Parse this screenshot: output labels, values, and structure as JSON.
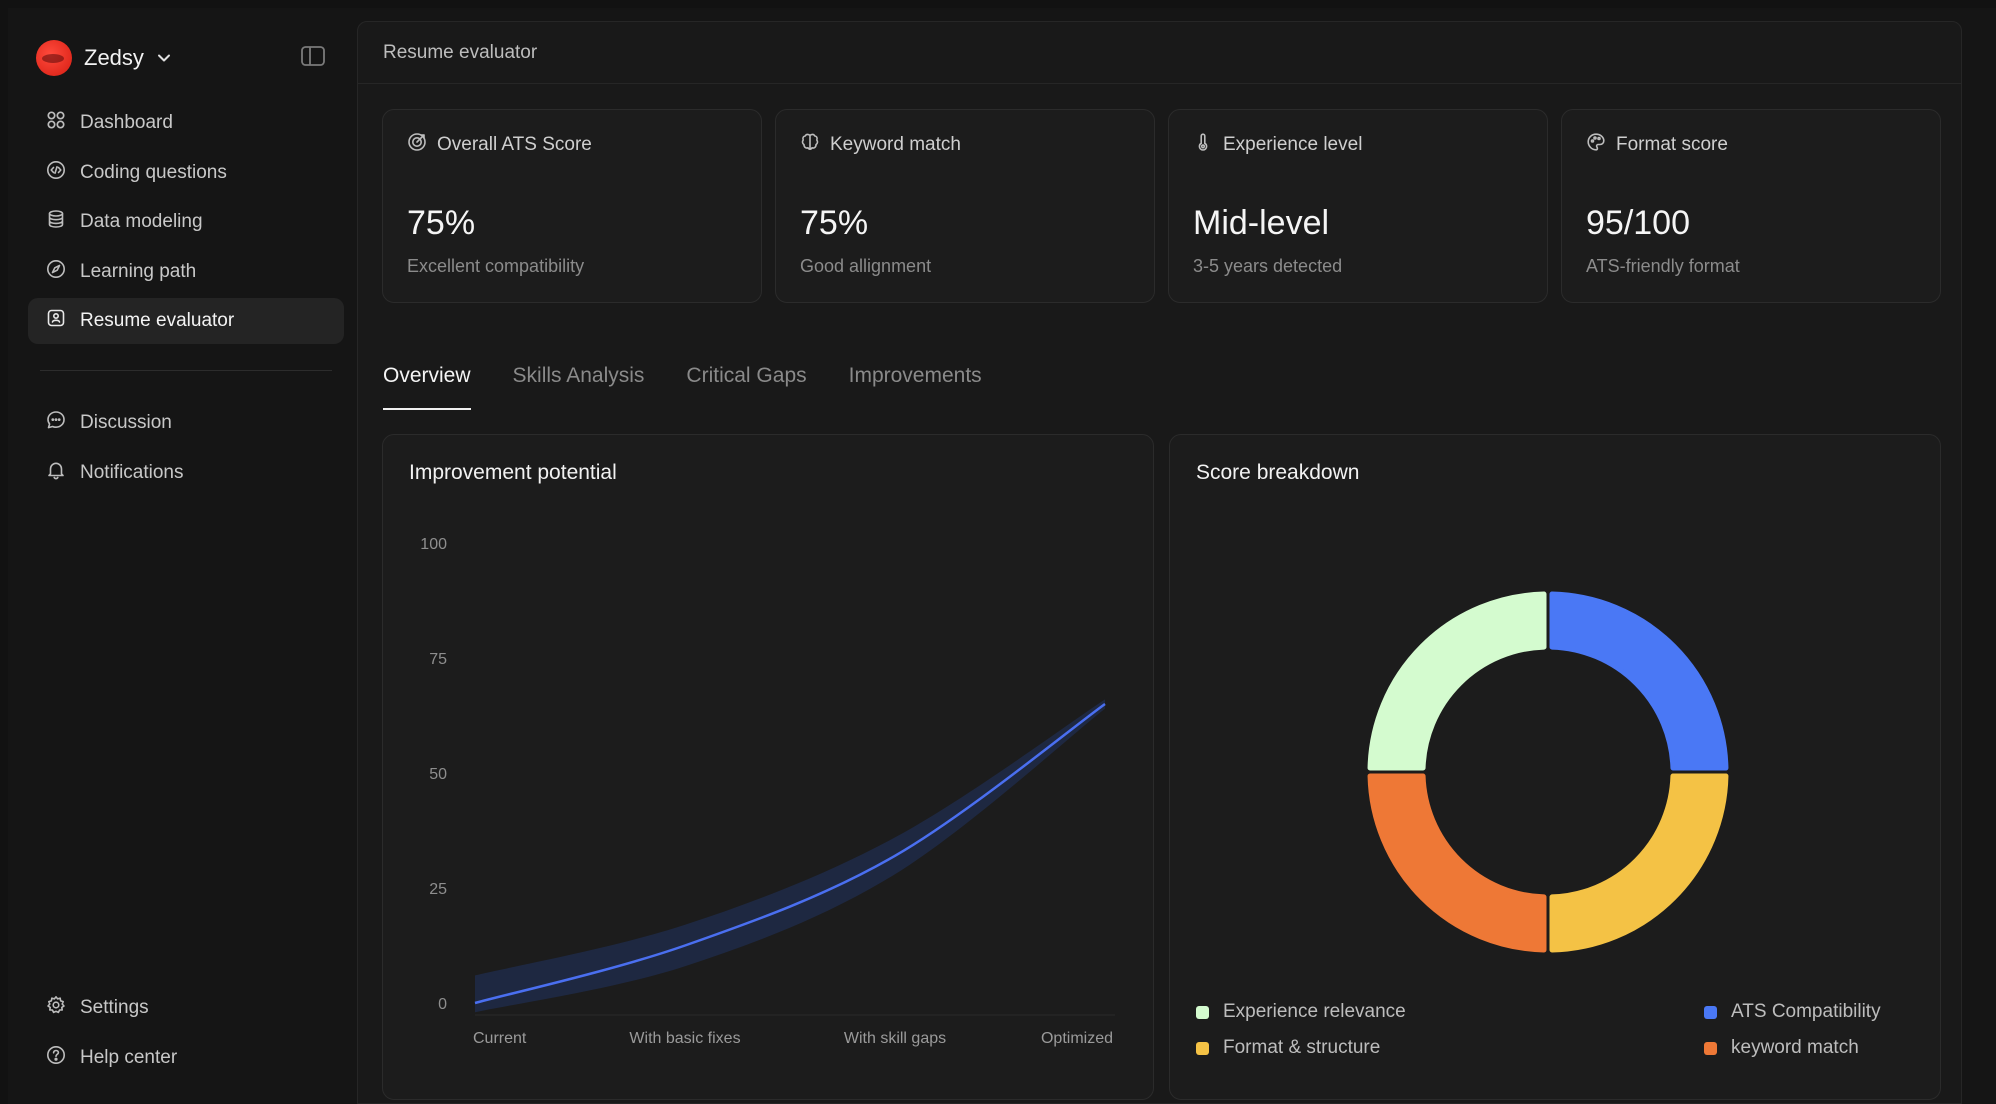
{
  "brand": {
    "name": "Zedsy"
  },
  "sidebar": {
    "items": [
      {
        "label": "Dashboard",
        "icon": "grid-icon"
      },
      {
        "label": "Coding questions",
        "icon": "code-icon"
      },
      {
        "label": "Data modeling",
        "icon": "database-icon"
      },
      {
        "label": "Learning path",
        "icon": "compass-icon"
      },
      {
        "label": "Resume evaluator",
        "icon": "resume-icon",
        "active": true
      }
    ],
    "secondary": [
      {
        "label": "Discussion",
        "icon": "chat-icon"
      },
      {
        "label": "Notifications",
        "icon": "bell-icon"
      }
    ],
    "footer": [
      {
        "label": "Settings",
        "icon": "gear-icon"
      },
      {
        "label": "Help center",
        "icon": "help-icon"
      }
    ]
  },
  "header": {
    "title": "Resume evaluator"
  },
  "cards": [
    {
      "title": "Overall ATS Score",
      "icon": "target-icon",
      "value": "75%",
      "sub": "Excellent compatibility"
    },
    {
      "title": "Keyword match",
      "icon": "brain-icon",
      "value": "75%",
      "sub": "Good allignment"
    },
    {
      "title": "Experience level",
      "icon": "thermometer-icon",
      "value": "Mid-level",
      "sub": "3-5  years detected"
    },
    {
      "title": "Format score",
      "icon": "palette-icon",
      "value": "95/100",
      "sub": "ATS-friendly format"
    }
  ],
  "tabs": [
    "Overview",
    "Skills Analysis",
    "Critical Gaps",
    "Improvements"
  ],
  "panels": {
    "improvement_title": "Improvement potential",
    "breakdown_title": "Score breakdown"
  },
  "colors": {
    "line": "#4a6ff0",
    "band": "#1f2a48",
    "experience": "#d4fbcf",
    "ats": "#4a78f5",
    "format": "#f4c245",
    "keyword": "#ee7836"
  },
  "chart_data": [
    {
      "type": "line",
      "title": "Improvement potential",
      "categories": [
        "Current",
        "With basic fixes",
        "With skill gaps",
        "Optimized"
      ],
      "y_ticks": [
        "100",
        "75",
        "50",
        "25",
        "0"
      ],
      "ylim": [
        0,
        100
      ],
      "series": [
        {
          "values": [
            0,
            12.5,
            32,
            65
          ]
        }
      ],
      "band": {
        "lower": [
          -2,
          8,
          28,
          64
        ],
        "upper": [
          6,
          17,
          36,
          66
        ]
      },
      "grid": false
    },
    {
      "type": "pie",
      "title": "Score breakdown",
      "labels": [
        "ATS Compatibility",
        "Format & structure",
        "keyword match",
        "Experience relevance"
      ],
      "values": [
        25,
        25,
        25,
        25
      ],
      "legend": [
        "Experience relevance",
        "ATS Compatibility",
        "Format & structure",
        "keyword match"
      ],
      "legend_placement": "bottom"
    }
  ]
}
